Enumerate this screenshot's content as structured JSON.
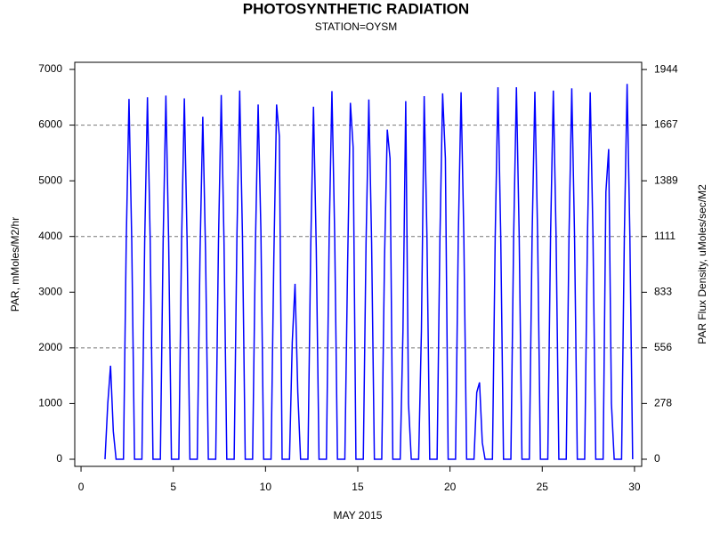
{
  "chart_data": {
    "type": "line",
    "title": "PHOTOSYNTHETIC RADIATION",
    "subtitle": "STATION=OYSM",
    "x_label": "MAY 2015",
    "y_label": "PAR, mMoles/M2/hr",
    "y2_label": "PAR Flux Density, uMoles/sec/M2",
    "xlim": [
      -0.34,
      30.39
    ],
    "xticks": [
      0,
      5,
      10,
      15,
      20,
      25,
      30
    ],
    "ylim": [
      -128,
      7128
    ],
    "yticks": [
      0,
      1000,
      2000,
      3000,
      4000,
      5000,
      6000,
      7000
    ],
    "y2lim": [
      -35.6,
      1980
    ],
    "y2ticks": [
      0,
      278,
      556,
      833,
      1111,
      1389,
      1667,
      1944
    ],
    "gridlines": [
      2000,
      4000,
      6000
    ],
    "x": [
      1.3,
      1.45,
      1.6,
      1.75,
      1.9,
      2.3,
      2.45,
      2.6,
      2.75,
      2.9,
      3.3,
      3.45,
      3.6,
      3.75,
      3.9,
      4.3,
      4.45,
      4.6,
      4.75,
      4.9,
      5.3,
      5.45,
      5.6,
      5.75,
      5.9,
      6.3,
      6.45,
      6.6,
      6.75,
      6.9,
      7.3,
      7.45,
      7.6,
      7.75,
      7.9,
      8.3,
      8.45,
      8.6,
      8.75,
      8.9,
      9.3,
      9.45,
      9.6,
      9.75,
      9.9,
      10.3,
      10.45,
      10.6,
      10.75,
      10.9,
      11.3,
      11.45,
      11.6,
      11.75,
      11.9,
      12.3,
      12.45,
      12.6,
      12.75,
      12.9,
      13.3,
      13.45,
      13.6,
      13.75,
      13.9,
      14.3,
      14.45,
      14.6,
      14.75,
      14.9,
      15.3,
      15.45,
      15.6,
      15.75,
      15.9,
      16.3,
      16.45,
      16.6,
      16.75,
      16.9,
      17.3,
      17.45,
      17.6,
      17.75,
      17.9,
      18.3,
      18.45,
      18.6,
      18.75,
      18.9,
      19.3,
      19.45,
      19.6,
      19.75,
      19.9,
      20.3,
      20.45,
      20.6,
      20.75,
      20.9,
      21.3,
      21.45,
      21.6,
      21.75,
      21.9,
      22.3,
      22.45,
      22.6,
      22.75,
      22.9,
      23.3,
      23.45,
      23.6,
      23.75,
      23.9,
      24.3,
      24.45,
      24.6,
      24.75,
      24.9,
      25.3,
      25.45,
      25.6,
      25.75,
      25.9,
      26.3,
      26.45,
      26.6,
      26.75,
      26.9,
      27.3,
      27.45,
      27.6,
      27.75,
      27.9,
      28.3,
      28.45,
      28.6,
      28.75,
      28.9,
      29.3,
      29.45,
      29.6,
      29.75,
      29.9
    ],
    "series": [
      {
        "color": "#0000ff",
        "values": [
          0,
          1000,
          1680,
          500,
          0,
          0,
          3900,
          6470,
          3900,
          0,
          0,
          3900,
          6500,
          3900,
          0,
          0,
          3900,
          6530,
          3900,
          0,
          0,
          3900,
          6480,
          3900,
          0,
          0,
          3700,
          6150,
          3700,
          0,
          0,
          3900,
          6540,
          3900,
          0,
          0,
          4000,
          6620,
          4000,
          0,
          0,
          3800,
          6370,
          4100,
          0,
          0,
          3600,
          6370,
          5800,
          0,
          0,
          2100,
          3150,
          1200,
          0,
          0,
          3800,
          6330,
          3800,
          0,
          0,
          4000,
          6610,
          4000,
          0,
          0,
          3500,
          6400,
          5600,
          0,
          0,
          3900,
          6460,
          3900,
          0,
          0,
          3600,
          5920,
          5400,
          0,
          0,
          2300,
          6430,
          1000,
          0,
          0,
          2300,
          6520,
          4000,
          0,
          0,
          3900,
          6570,
          5400,
          0,
          0,
          4000,
          6590,
          4000,
          0,
          0,
          1200,
          1380,
          300,
          0,
          0,
          4000,
          6680,
          4000,
          0,
          0,
          4000,
          6680,
          4000,
          0,
          0,
          4000,
          6600,
          4000,
          0,
          0,
          4000,
          6620,
          4000,
          0,
          0,
          4000,
          6660,
          4000,
          0,
          0,
          4000,
          6590,
          4000,
          0,
          0,
          4800,
          5570,
          1000,
          0,
          0,
          4000,
          6740,
          4000,
          0
        ]
      }
    ]
  }
}
